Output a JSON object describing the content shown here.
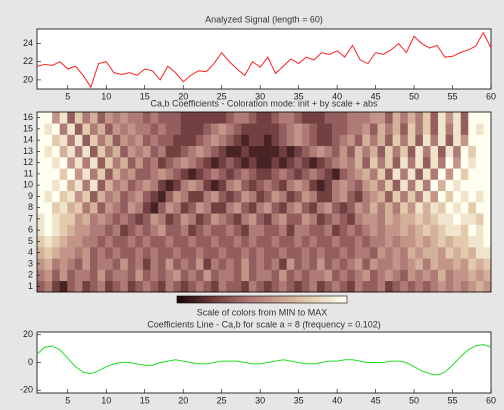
{
  "chart_data": [
    {
      "type": "line",
      "title": "Analyzed Signal  (length = 60)",
      "color": "#ff2020",
      "x": [
        1,
        2,
        3,
        4,
        5,
        6,
        7,
        8,
        9,
        10,
        11,
        12,
        13,
        14,
        15,
        16,
        17,
        18,
        19,
        20,
        21,
        22,
        23,
        24,
        25,
        26,
        27,
        28,
        29,
        30,
        31,
        32,
        33,
        34,
        35,
        36,
        37,
        38,
        39,
        40,
        41,
        42,
        43,
        44,
        45,
        46,
        47,
        48,
        49,
        50,
        51,
        52,
        53,
        54,
        55,
        56,
        57,
        58,
        59,
        60
      ],
      "values": [
        21.5,
        21.7,
        21.6,
        22,
        21.2,
        21.5,
        20.5,
        19.2,
        21.8,
        22,
        20.8,
        20.6,
        20.8,
        20.5,
        21.2,
        21,
        20,
        21.5,
        20.8,
        19.8,
        20.5,
        21,
        20.9,
        21.8,
        23,
        22,
        21.2,
        20.5,
        22,
        21.4,
        22.5,
        20.7,
        21.5,
        22.3,
        21.8,
        22.5,
        22.2,
        23,
        22.8,
        23.2,
        22.5,
        23.8,
        22.2,
        21.8,
        23,
        22.8,
        23.3,
        24,
        23,
        24.8,
        24,
        23.5,
        23.8,
        22.5,
        22.6,
        23,
        23.3,
        23.7,
        25.2,
        23.5
      ],
      "xlim": [
        1,
        60
      ],
      "xticks": [
        5,
        10,
        15,
        20,
        25,
        30,
        35,
        40,
        45,
        50,
        55,
        60
      ],
      "ylim": [
        19,
        25.6
      ],
      "yticks": [
        20,
        22,
        24
      ]
    },
    {
      "type": "heatmap",
      "title": "Ca,b Coefficients - Coloration mode: init + by scale + abs",
      "colorbar_title": "Scale of colors from MIN to MAX",
      "colormap": [
        "#1c0606",
        "#6b3a3a",
        "#a87070",
        "#c9a08f",
        "#e6cfb0",
        "#fffff0"
      ],
      "zlim": [
        0,
        9
      ],
      "xlim": [
        0.5,
        60.5
      ],
      "y": [
        1,
        2,
        3,
        4,
        5,
        6,
        7,
        8,
        9,
        10,
        11,
        12,
        13,
        14,
        15,
        16
      ],
      "z": [
        [
          3,
          4,
          2,
          1,
          3,
          4,
          2,
          3,
          4,
          2,
          3,
          4,
          2,
          3,
          4,
          3,
          2,
          4,
          3,
          2,
          3,
          4,
          3,
          2,
          4,
          3,
          3,
          2,
          4,
          3,
          2,
          3,
          4,
          3,
          2,
          3,
          4,
          2,
          3,
          4,
          3,
          2,
          4,
          3,
          3,
          4,
          2,
          3,
          4,
          3,
          4,
          3,
          4,
          5,
          4,
          5,
          4,
          5,
          6,
          5
        ],
        [
          4,
          5,
          3,
          5,
          3,
          4,
          4,
          3,
          5,
          3,
          4,
          4,
          3,
          5,
          3,
          4,
          3,
          4,
          5,
          3,
          4,
          3,
          5,
          3,
          4,
          4,
          3,
          5,
          3,
          4,
          4,
          3,
          5,
          3,
          4,
          3,
          4,
          4,
          5,
          3,
          4,
          3,
          4,
          5,
          3,
          4,
          5,
          4,
          3,
          5,
          4,
          5,
          4,
          6,
          4,
          5,
          5,
          6,
          5,
          6
        ],
        [
          5,
          6,
          4,
          5,
          4,
          3,
          5,
          3,
          4,
          4,
          3,
          5,
          3,
          4,
          2,
          4,
          3,
          5,
          3,
          4,
          3,
          5,
          2,
          4,
          3,
          4,
          3,
          5,
          3,
          4,
          3,
          4,
          2,
          5,
          3,
          4,
          3,
          5,
          3,
          4,
          3,
          4,
          5,
          3,
          5,
          4,
          4,
          5,
          4,
          5,
          6,
          4,
          6,
          5,
          5,
          6,
          5,
          7,
          6,
          7
        ],
        [
          6,
          7,
          6,
          5,
          5,
          4,
          5,
          3,
          4,
          3,
          4,
          3,
          3,
          4,
          3,
          4,
          3,
          3,
          4,
          3,
          3,
          4,
          3,
          3,
          4,
          3,
          3,
          4,
          3,
          4,
          3,
          3,
          4,
          3,
          3,
          4,
          3,
          4,
          3,
          3,
          4,
          3,
          4,
          4,
          3,
          5,
          4,
          5,
          4,
          6,
          5,
          6,
          6,
          5,
          7,
          6,
          7,
          6,
          8,
          8
        ],
        [
          7,
          8,
          7,
          6,
          5,
          5,
          4,
          4,
          3,
          4,
          3,
          3,
          4,
          3,
          4,
          3,
          3,
          4,
          3,
          3,
          4,
          3,
          3,
          4,
          3,
          3,
          4,
          3,
          4,
          3,
          3,
          4,
          3,
          3,
          4,
          3,
          4,
          3,
          3,
          4,
          3,
          3,
          4,
          3,
          4,
          4,
          5,
          4,
          5,
          5,
          6,
          5,
          6,
          7,
          6,
          7,
          7,
          8,
          8,
          9
        ],
        [
          8,
          9,
          8,
          7,
          6,
          5,
          5,
          4,
          4,
          3,
          4,
          2,
          3,
          4,
          3,
          4,
          5,
          3,
          3,
          4,
          2,
          3,
          4,
          3,
          3,
          4,
          3,
          2,
          4,
          4,
          3,
          3,
          4,
          2,
          4,
          4,
          3,
          3,
          4,
          2,
          3,
          4,
          3,
          4,
          5,
          4,
          5,
          5,
          6,
          5,
          6,
          7,
          6,
          7,
          8,
          8,
          7,
          9,
          8,
          9
        ],
        [
          8,
          9,
          8,
          7,
          7,
          5,
          6,
          4,
          5,
          4,
          3,
          4,
          3,
          2,
          3,
          5,
          4,
          2,
          3,
          5,
          4,
          2,
          3,
          5,
          4,
          3,
          2,
          4,
          5,
          3,
          2,
          4,
          5,
          3,
          3,
          5,
          4,
          2,
          3,
          4,
          3,
          2,
          4,
          5,
          5,
          4,
          6,
          5,
          6,
          6,
          7,
          6,
          7,
          8,
          8,
          9,
          8,
          8,
          7,
          9
        ],
        [
          9,
          9,
          7,
          8,
          6,
          7,
          4,
          6,
          3,
          5,
          4,
          3,
          5,
          4,
          2,
          1,
          3,
          5,
          4,
          2,
          3,
          5,
          4,
          2,
          2,
          4,
          5,
          3,
          2,
          4,
          5,
          3,
          2,
          4,
          5,
          3,
          2,
          4,
          5,
          3,
          2,
          3,
          5,
          4,
          6,
          4,
          6,
          4,
          7,
          5,
          8,
          6,
          8,
          7,
          9,
          8,
          9,
          7,
          9,
          9
        ],
        [
          9,
          8,
          9,
          7,
          8,
          5,
          7,
          3,
          6,
          4,
          5,
          3,
          4,
          5,
          3,
          2,
          1,
          3,
          5,
          4,
          2,
          2,
          4,
          5,
          3,
          2,
          3,
          5,
          4,
          2,
          3,
          5,
          4,
          2,
          3,
          5,
          4,
          2,
          2,
          4,
          5,
          3,
          2,
          4,
          5,
          6,
          3,
          7,
          4,
          7,
          4,
          8,
          5,
          9,
          7,
          9,
          8,
          9,
          8,
          9
        ],
        [
          9,
          9,
          8,
          9,
          6,
          8,
          4,
          8,
          3,
          6,
          4,
          5,
          3,
          4,
          5,
          4,
          2,
          1,
          2,
          4,
          5,
          4,
          2,
          1,
          2,
          4,
          5,
          3,
          2,
          3,
          4,
          3,
          2,
          4,
          5,
          4,
          2,
          1,
          2,
          4,
          5,
          4,
          3,
          5,
          6,
          4,
          7,
          3,
          8,
          4,
          8,
          4,
          9,
          6,
          9,
          8,
          9,
          9,
          9,
          9
        ],
        [
          9,
          9,
          9,
          7,
          9,
          5,
          8,
          4,
          7,
          3,
          6,
          4,
          5,
          3,
          3,
          4,
          5,
          4,
          3,
          2,
          1,
          2,
          3,
          4,
          3,
          2,
          3,
          4,
          3,
          2,
          2,
          3,
          4,
          3,
          2,
          3,
          4,
          3,
          2,
          1,
          3,
          4,
          5,
          6,
          4,
          7,
          3,
          8,
          4,
          8,
          3,
          8,
          4,
          9,
          5,
          9,
          7,
          9,
          9,
          9
        ],
        [
          9,
          9,
          8,
          9,
          5,
          8,
          4,
          8,
          3,
          7,
          4,
          6,
          3,
          5,
          3,
          4,
          2,
          3,
          4,
          5,
          4,
          3,
          2,
          1,
          2,
          3,
          2,
          1,
          2,
          1,
          1,
          2,
          1,
          2,
          3,
          2,
          1,
          2,
          3,
          4,
          5,
          4,
          6,
          3,
          7,
          4,
          7,
          3,
          8,
          4,
          8,
          3,
          8,
          4,
          9,
          5,
          9,
          8,
          9,
          9
        ],
        [
          9,
          8,
          9,
          6,
          8,
          4,
          8,
          3,
          7,
          4,
          6,
          3,
          5,
          4,
          5,
          3,
          4,
          2,
          2,
          3,
          4,
          5,
          4,
          3,
          2,
          1,
          1,
          2,
          1,
          1,
          1,
          1,
          2,
          1,
          2,
          3,
          4,
          5,
          4,
          3,
          5,
          3,
          6,
          4,
          6,
          3,
          7,
          4,
          7,
          3,
          8,
          4,
          8,
          3,
          8,
          4,
          9,
          7,
          9,
          9
        ],
        [
          9,
          9,
          7,
          8,
          4,
          8,
          3,
          7,
          4,
          6,
          3,
          5,
          4,
          5,
          3,
          4,
          3,
          3,
          2,
          2,
          2,
          3,
          4,
          5,
          4,
          3,
          2,
          1,
          2,
          2,
          1,
          2,
          3,
          4,
          5,
          4,
          3,
          2,
          2,
          3,
          4,
          5,
          3,
          6,
          4,
          6,
          3,
          7,
          4,
          7,
          3,
          8,
          4,
          8,
          3,
          8,
          5,
          9,
          9,
          9
        ],
        [
          9,
          8,
          9,
          4,
          8,
          3,
          7,
          4,
          6,
          3,
          5,
          4,
          5,
          4,
          4,
          3,
          4,
          3,
          3,
          2,
          2,
          2,
          3,
          4,
          5,
          4,
          3,
          2,
          2,
          2,
          2,
          2,
          3,
          4,
          5,
          4,
          3,
          2,
          2,
          3,
          3,
          4,
          4,
          5,
          3,
          6,
          4,
          6,
          3,
          7,
          4,
          7,
          3,
          8,
          4,
          8,
          3,
          9,
          8,
          9
        ],
        [
          9,
          9,
          5,
          8,
          3,
          7,
          4,
          6,
          3,
          5,
          4,
          5,
          4,
          4,
          3,
          4,
          3,
          3,
          3,
          2,
          2,
          2,
          2,
          2,
          2,
          3,
          4,
          4,
          3,
          2,
          2,
          3,
          4,
          4,
          3,
          2,
          2,
          2,
          3,
          3,
          3,
          4,
          4,
          4,
          5,
          5,
          3,
          6,
          4,
          6,
          4,
          7,
          3,
          8,
          5,
          8,
          3,
          9,
          9,
          9
        ]
      ]
    },
    {
      "type": "line",
      "title": "Coefficients Line - Ca,b for scale a = 8  (frequency =  0.102)",
      "color": "#22dd22",
      "x": [
        1,
        2,
        3,
        4,
        5,
        6,
        7,
        8,
        9,
        10,
        11,
        12,
        13,
        14,
        15,
        16,
        17,
        18,
        19,
        20,
        21,
        22,
        23,
        24,
        25,
        26,
        27,
        28,
        29,
        30,
        31,
        32,
        33,
        34,
        35,
        36,
        37,
        38,
        39,
        40,
        41,
        42,
        43,
        44,
        45,
        46,
        47,
        48,
        49,
        50,
        51,
        52,
        53,
        54,
        55,
        56,
        57,
        58,
        59,
        60
      ],
      "values": [
        6,
        11,
        12,
        9,
        3,
        -3,
        -7,
        -8,
        -6,
        -3,
        -1,
        0,
        0,
        -1,
        -2,
        -2,
        0,
        1,
        2,
        1,
        0,
        -1,
        -1,
        0,
        1,
        1,
        1,
        0,
        -1,
        -1,
        0,
        1,
        2,
        1,
        0,
        -1,
        -1,
        0,
        1,
        1,
        2,
        2,
        1,
        0,
        0,
        0,
        1,
        1,
        0,
        -3,
        -6,
        -8,
        -9,
        -7,
        -2,
        4,
        9,
        12,
        13,
        11
      ],
      "xlim": [
        1,
        60
      ],
      "xticks": [
        5,
        10,
        15,
        20,
        25,
        30,
        35,
        40,
        45,
        50,
        55,
        60
      ],
      "ylim": [
        -22,
        22
      ],
      "yticks": [
        -20,
        0,
        20
      ]
    }
  ]
}
